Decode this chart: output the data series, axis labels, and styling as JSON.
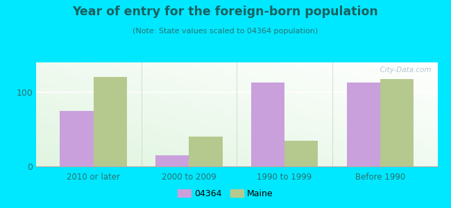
{
  "title": "Year of entry for the foreign-born population",
  "subtitle": "(Note: State values scaled to 04364 population)",
  "categories": [
    "2010 or later",
    "2000 to 2009",
    "1990 to 1999",
    "Before 1990"
  ],
  "values_04364": [
    75,
    15,
    113,
    113
  ],
  "values_maine": [
    120,
    40,
    35,
    118
  ],
  "color_04364": "#c9a0dc",
  "color_maine": "#b5c98e",
  "background_outer": "#00e8ff",
  "ylim": [
    0,
    140
  ],
  "yticks": [
    0,
    100
  ],
  "bar_width": 0.35,
  "legend_label_04364": "04364",
  "legend_label_maine": "Maine",
  "title_color": "#1a6060",
  "subtitle_color": "#2a7070",
  "tick_label_color": "#2a7070",
  "watermark_color": "#aabbcc"
}
